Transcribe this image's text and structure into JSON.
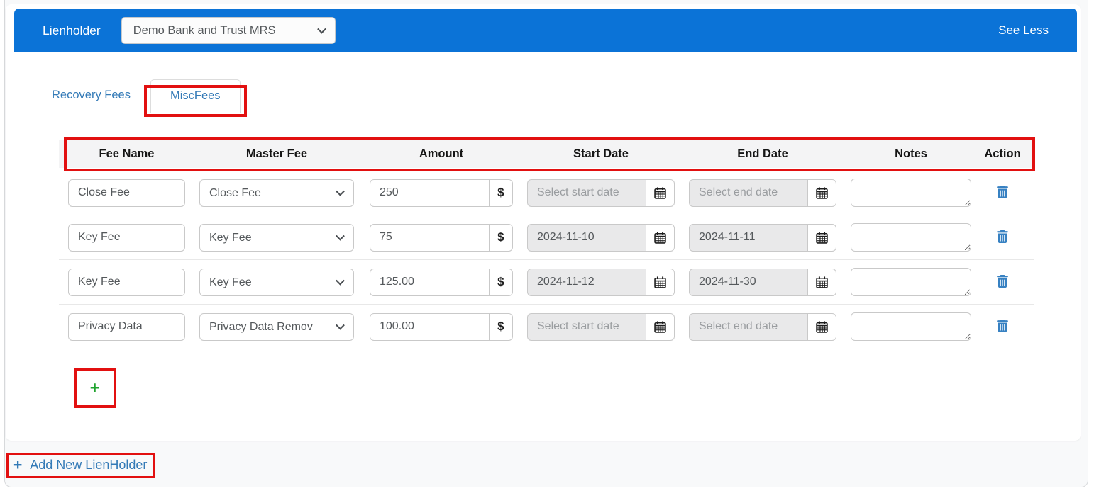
{
  "lienholder_bar": {
    "label": "Lienholder",
    "selected_bank": "Demo Bank and Trust MRS",
    "see_less_label": "See Less"
  },
  "tabs": {
    "recovery_fees": "Recovery Fees",
    "misc_fees": "MiscFees"
  },
  "fees_table": {
    "columns": [
      "Fee Name",
      "Master Fee",
      "Amount",
      "Start Date",
      "End Date",
      "Notes",
      "Action"
    ],
    "currency_symbol": "$",
    "rows": [
      {
        "fee_name": "Close Fee",
        "master_fee": "Close Fee",
        "amount": "250",
        "start_date": "",
        "end_date": "",
        "notes": "",
        "start_placeholder": "Select start date",
        "end_placeholder": "Select end date"
      },
      {
        "fee_name": "Key Fee",
        "master_fee": "Key Fee",
        "amount": "75",
        "start_date": "2024-11-10",
        "end_date": "2024-11-11",
        "notes": "",
        "start_placeholder": "Select start date",
        "end_placeholder": "Select end date"
      },
      {
        "fee_name": "Key Fee",
        "master_fee": "Key Fee",
        "amount": "125.00",
        "start_date": "2024-11-12",
        "end_date": "2024-11-30",
        "notes": "",
        "start_placeholder": "Select start date",
        "end_placeholder": "Select end date"
      },
      {
        "fee_name": "Privacy Data",
        "master_fee": "Privacy Data Remov",
        "amount": "100.00",
        "start_date": "",
        "end_date": "",
        "notes": "",
        "start_placeholder": "Select start date",
        "end_placeholder": "Select end date"
      }
    ],
    "add_row_label": "+"
  },
  "footer": {
    "plus_icon": "+",
    "add_new_lienholder": "Add New LienHolder"
  },
  "icons": {
    "calendar": "calendar-icon",
    "trash": "trash-icon",
    "chevron": "chevron-down-icon",
    "plus_green": "add-plus-icon",
    "plus_blue": "add-lienholder-plus-icon"
  },
  "colors": {
    "header_blue": "#0b73d7",
    "link_blue": "#337ab7",
    "annotation_red": "#e21010",
    "add_green": "#1fa32e",
    "header_row_bg": "#f4f4f5",
    "disabled_input_bg": "#e9e9ea"
  }
}
